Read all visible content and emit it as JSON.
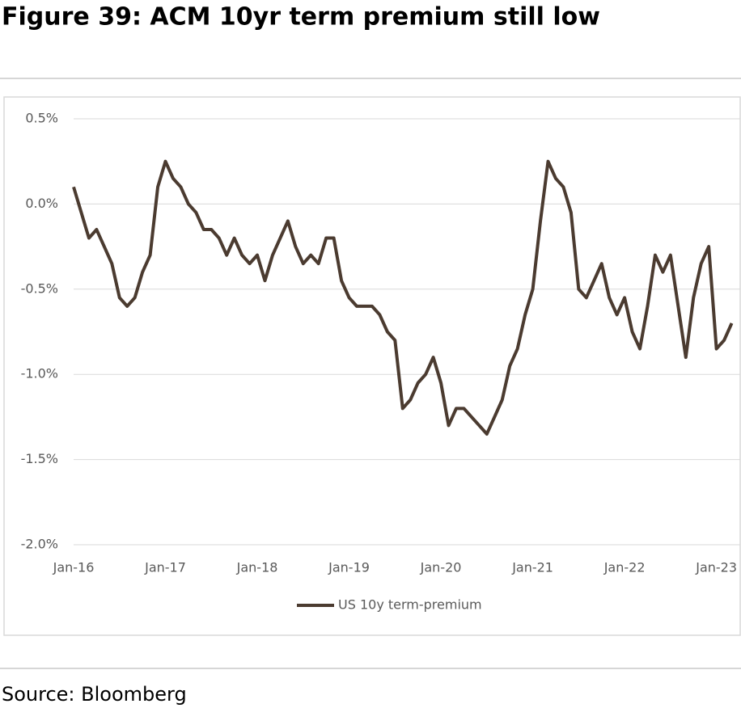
{
  "chart_data": {
    "type": "line",
    "title": "Figure 39: ACM 10yr term premium still low",
    "source": "Source: Bloomberg",
    "x": [
      "2016-01",
      "2016-02",
      "2016-03",
      "2016-04",
      "2016-05",
      "2016-06",
      "2016-07",
      "2016-08",
      "2016-09",
      "2016-10",
      "2016-11",
      "2016-12",
      "2017-01",
      "2017-02",
      "2017-03",
      "2017-04",
      "2017-05",
      "2017-06",
      "2017-07",
      "2017-08",
      "2017-09",
      "2017-10",
      "2017-11",
      "2017-12",
      "2018-01",
      "2018-02",
      "2018-03",
      "2018-04",
      "2018-05",
      "2018-06",
      "2018-07",
      "2018-08",
      "2018-09",
      "2018-10",
      "2018-11",
      "2018-12",
      "2019-01",
      "2019-02",
      "2019-03",
      "2019-04",
      "2019-05",
      "2019-06",
      "2019-07",
      "2019-08",
      "2019-09",
      "2019-10",
      "2019-11",
      "2019-12",
      "2020-01",
      "2020-02",
      "2020-03",
      "2020-04",
      "2020-05",
      "2020-06",
      "2020-07",
      "2020-08",
      "2020-09",
      "2020-10",
      "2020-11",
      "2020-12",
      "2021-01",
      "2021-02",
      "2021-03",
      "2021-04",
      "2021-05",
      "2021-06",
      "2021-07",
      "2021-08",
      "2021-09",
      "2021-10",
      "2021-11",
      "2021-12",
      "2022-01",
      "2022-02",
      "2022-03",
      "2022-04",
      "2022-05",
      "2022-06",
      "2022-07",
      "2022-08",
      "2022-09",
      "2022-10",
      "2022-11",
      "2022-12",
      "2023-01",
      "2023-02",
      "2023-03"
    ],
    "series": [
      {
        "name": "US 10y term-premium",
        "color": "#4b3b30",
        "values": [
          0.1,
          -0.05,
          -0.2,
          -0.15,
          -0.25,
          -0.35,
          -0.55,
          -0.6,
          -0.55,
          -0.4,
          -0.3,
          0.1,
          0.25,
          0.15,
          0.1,
          0.0,
          -0.05,
          -0.15,
          -0.15,
          -0.2,
          -0.3,
          -0.2,
          -0.3,
          -0.35,
          -0.3,
          -0.45,
          -0.3,
          -0.2,
          -0.1,
          -0.25,
          -0.35,
          -0.3,
          -0.35,
          -0.2,
          -0.2,
          -0.45,
          -0.55,
          -0.6,
          -0.6,
          -0.6,
          -0.65,
          -0.75,
          -0.8,
          -1.2,
          -1.15,
          -1.05,
          -1.0,
          -0.9,
          -1.05,
          -1.3,
          -1.2,
          -1.2,
          -1.25,
          -1.3,
          -1.35,
          -1.25,
          -1.15,
          -0.95,
          -0.85,
          -0.65,
          -0.5,
          -0.1,
          0.25,
          0.15,
          0.1,
          -0.05,
          -0.5,
          -0.55,
          -0.45,
          -0.35,
          -0.55,
          -0.65,
          -0.55,
          -0.75,
          -0.85,
          -0.6,
          -0.3,
          -0.4,
          -0.3,
          -0.6,
          -0.9,
          -0.55,
          -0.35,
          -0.25,
          -0.85,
          -0.8,
          -0.7
        ]
      }
    ],
    "xlim": [
      "2016-01",
      "2023-04"
    ],
    "xticks": [
      {
        "value": "2016-01",
        "label": "Jan-16"
      },
      {
        "value": "2017-01",
        "label": "Jan-17"
      },
      {
        "value": "2018-01",
        "label": "Jan-18"
      },
      {
        "value": "2019-01",
        "label": "Jan-19"
      },
      {
        "value": "2020-01",
        "label": "Jan-20"
      },
      {
        "value": "2021-01",
        "label": "Jan-21"
      },
      {
        "value": "2022-01",
        "label": "Jan-22"
      },
      {
        "value": "2023-01",
        "label": "Jan-23"
      }
    ],
    "ylim": [
      -2.0,
      0.5
    ],
    "yticks": [
      {
        "value": 0.5,
        "label": "0.5%"
      },
      {
        "value": 0.0,
        "label": "0.0%"
      },
      {
        "value": -0.5,
        "label": "-0.5%"
      },
      {
        "value": -1.0,
        "label": "-1.0%"
      },
      {
        "value": -1.5,
        "label": "-1.5%"
      },
      {
        "value": -2.0,
        "label": "-2.0%"
      }
    ],
    "grid": true,
    "legend": "bottom"
  }
}
